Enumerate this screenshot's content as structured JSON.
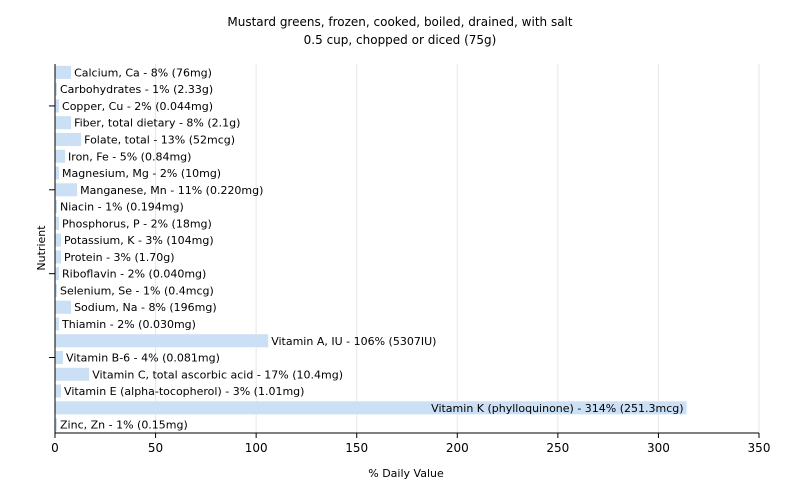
{
  "chart_data": {
    "type": "bar",
    "orientation": "horizontal",
    "title": "Mustard greens, frozen, cooked, boiled, drained, with salt",
    "subtitle": "0.5 cup, chopped or diced (75g)",
    "xlabel": "% Daily Value",
    "ylabel": "Nutrient",
    "xlim": [
      0,
      350
    ],
    "xticks": [
      0,
      50,
      100,
      150,
      200,
      250,
      300,
      350
    ],
    "grid": true,
    "bar_color": "#cce0f5",
    "categories": [
      "Calcium, Ca",
      "Carbohydrates",
      "Copper, Cu",
      "Fiber, total dietary",
      "Folate, total",
      "Iron, Fe",
      "Magnesium, Mg",
      "Manganese, Mn",
      "Niacin",
      "Phosphorus, P",
      "Potassium, K",
      "Protein",
      "Riboflavin",
      "Selenium, Se",
      "Sodium, Na",
      "Thiamin",
      "Vitamin A, IU",
      "Vitamin B-6",
      "Vitamin C, total ascorbic acid",
      "Vitamin E (alpha-tocopherol)",
      "Vitamin K (phylloquinone)",
      "Zinc, Zn"
    ],
    "values": [
      8,
      1,
      2,
      8,
      13,
      5,
      2,
      11,
      1,
      2,
      3,
      3,
      2,
      1,
      8,
      2,
      106,
      4,
      17,
      3,
      314,
      1
    ],
    "labels": [
      "Calcium, Ca - 8% (76mg)",
      "Carbohydrates - 1% (2.33g)",
      "Copper, Cu - 2% (0.044mg)",
      "Fiber, total dietary - 8% (2.1g)",
      "Folate, total - 13% (52mcg)",
      "Iron, Fe - 5% (0.84mg)",
      "Magnesium, Mg - 2% (10mg)",
      "Manganese, Mn - 11% (0.220mg)",
      "Niacin - 1% (0.194mg)",
      "Phosphorus, P - 2% (18mg)",
      "Potassium, K - 3% (104mg)",
      "Protein - 3% (1.70g)",
      "Riboflavin - 2% (0.040mg)",
      "Selenium, Se - 1% (0.4mcg)",
      "Sodium, Na - 8% (196mg)",
      "Thiamin - 2% (0.030mg)",
      "Vitamin A, IU - 106% (5307IU)",
      "Vitamin B-6 - 4% (0.081mg)",
      "Vitamin C, total ascorbic acid - 17% (10.4mg)",
      "Vitamin E (alpha-tocopherol) - 3% (1.01mg)",
      "Vitamin K (phylloquinone) - 314% (251.3mcg)",
      "Zinc, Zn - 1% (0.15mg)"
    ]
  }
}
